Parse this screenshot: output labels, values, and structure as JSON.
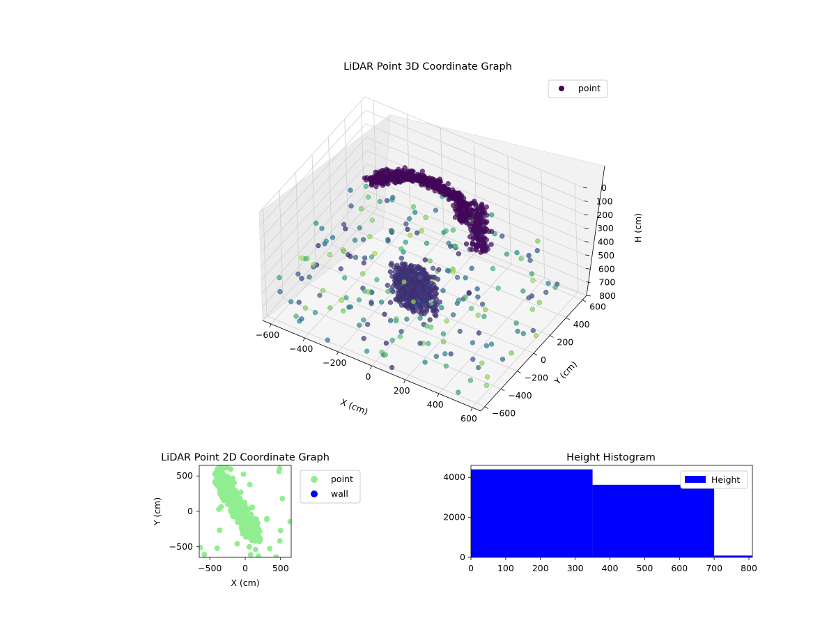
{
  "chart_data": [
    {
      "type": "scatter3d",
      "title": "LiDAR Point 3D Coordinate Graph",
      "xlabel": "X (cm)",
      "ylabel": "Y (cm)",
      "zlabel": "H (cm)",
      "x_ticks": [
        "−600",
        "−400",
        "−200",
        "0",
        "200",
        "400",
        "600"
      ],
      "y_ticks": [
        "−600",
        "−400",
        "−200",
        "0",
        "200",
        "400",
        "600"
      ],
      "z_ticks": [
        "0",
        "100",
        "200",
        "300",
        "400",
        "500",
        "600",
        "700",
        "800"
      ],
      "xlim": [
        -650,
        650
      ],
      "ylim": [
        -650,
        650
      ],
      "zlim": [
        800,
        0
      ],
      "grid": true,
      "colormap": "viridis",
      "legend": {
        "entries": [
          "point"
        ],
        "placement": "upper-right"
      },
      "series": [
        {
          "name": "point",
          "color": "#440154"
        }
      ]
    },
    {
      "type": "scatter",
      "title": "LiDAR Point 2D Coordinate Graph",
      "xlabel": "X (cm)",
      "ylabel": "Y (cm)",
      "x_ticks": [
        "−500",
        "0",
        "500"
      ],
      "y_ticks": [
        "−500",
        "0",
        "500"
      ],
      "xlim": [
        -650,
        650
      ],
      "ylim": [
        -650,
        650
      ],
      "legend": {
        "placement": "outside-right"
      },
      "series": [
        {
          "name": "point",
          "color": "#90ee90"
        },
        {
          "name": "wall",
          "color": "#0000ff"
        }
      ]
    },
    {
      "type": "bar",
      "title": "Height Histogram",
      "x_ticks": [
        "0",
        "100",
        "200",
        "300",
        "400",
        "500",
        "600",
        "700",
        "800"
      ],
      "y_ticks": [
        "0",
        "2000",
        "4000"
      ],
      "xlim": [
        0,
        810
      ],
      "ylim": [
        0,
        4600
      ],
      "bins": [
        {
          "start": 0,
          "end": 350,
          "count": 4400
        },
        {
          "start": 350,
          "end": 700,
          "count": 3630
        },
        {
          "start": 700,
          "end": 810,
          "count": 90
        }
      ],
      "color": "#0000ff",
      "legend": {
        "entries": [
          "Height"
        ],
        "placement": "upper-right"
      }
    }
  ]
}
